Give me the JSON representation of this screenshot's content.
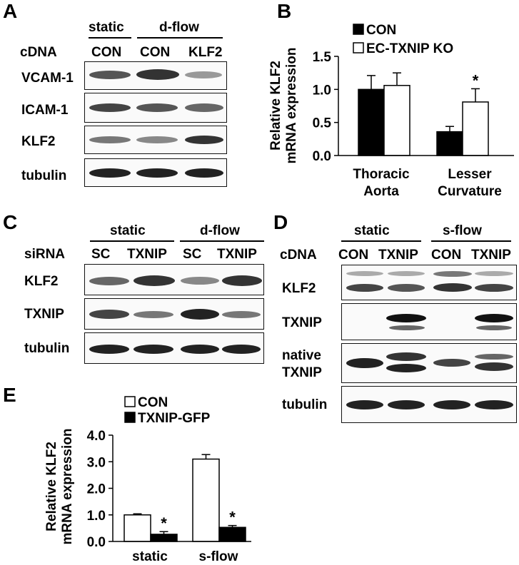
{
  "panelA": {
    "letter": "A",
    "groups": [
      "static",
      "d-flow"
    ],
    "row_header": "cDNA",
    "lanes": [
      "CON",
      "CON",
      "KLF2"
    ],
    "blots": [
      "VCAM-1",
      "ICAM-1",
      "KLF2",
      "tubulin"
    ]
  },
  "panelB": {
    "letter": "B",
    "legend": [
      "CON",
      "EC-TXNIP KO"
    ],
    "ylabel_line1": "Relative KLF2",
    "ylabel_line2": "mRNA expression",
    "star": "*",
    "ticks": [
      "0.0",
      "0.5",
      "1.0",
      "1.5"
    ],
    "cat1_line1": "Thoracic",
    "cat1_line2": "Aorta",
    "cat2_line1": "Lesser",
    "cat2_line2": "Curvature"
  },
  "panelC": {
    "letter": "C",
    "groups": [
      "static",
      "d-flow"
    ],
    "row_header": "siRNA",
    "lanes": [
      "SC",
      "TXNIP",
      "SC",
      "TXNIP"
    ],
    "blots": [
      "KLF2",
      "TXNIP",
      "tubulin"
    ]
  },
  "panelD": {
    "letter": "D",
    "groups": [
      "static",
      "s-flow"
    ],
    "row_header": "cDNA",
    "lanes": [
      "CON",
      "TXNIP",
      "CON",
      "TXNIP"
    ],
    "blots": [
      "KLF2",
      "TXNIP",
      "native",
      "TXNIP",
      "tubulin"
    ]
  },
  "panelE": {
    "letter": "E",
    "legend": [
      "CON",
      "TXNIP-GFP"
    ],
    "ylabel_line1": "Relative KLF2",
    "ylabel_line2": "mRNA expression",
    "star": "*",
    "ticks": [
      "0.0",
      "1.0",
      "2.0",
      "3.0",
      "4.0"
    ],
    "cat1": "static",
    "cat2": "s-flow"
  },
  "chart_data": [
    {
      "type": "bar",
      "panel": "B",
      "ylabel": "Relative KLF2 mRNA expression",
      "ylim": [
        0,
        1.5
      ],
      "categories": [
        "Thoracic Aorta",
        "Lesser Curvature"
      ],
      "series": [
        {
          "name": "CON",
          "color": "#000000",
          "values": [
            1.0,
            0.36
          ],
          "errors": [
            0.21,
            0.08
          ]
        },
        {
          "name": "EC-TXNIP KO",
          "color": "#ffffff",
          "values": [
            1.06,
            0.81
          ],
          "errors": [
            0.19,
            0.2
          ]
        }
      ],
      "significance": [
        {
          "category": "Lesser Curvature",
          "series": "EC-TXNIP KO",
          "mark": "*"
        }
      ]
    },
    {
      "type": "bar",
      "panel": "E",
      "ylabel": "Relative KLF2 mRNA expression",
      "ylim": [
        0,
        4.0
      ],
      "categories": [
        "static",
        "s-flow"
      ],
      "series": [
        {
          "name": "CON",
          "color": "#ffffff",
          "values": [
            1.0,
            3.1
          ],
          "errors": [
            0.04,
            0.17
          ]
        },
        {
          "name": "TXNIP-GFP",
          "color": "#000000",
          "values": [
            0.27,
            0.53
          ],
          "errors": [
            0.1,
            0.07
          ]
        }
      ],
      "significance": [
        {
          "category": "static",
          "series": "TXNIP-GFP",
          "mark": "*"
        },
        {
          "category": "s-flow",
          "series": "TXNIP-GFP",
          "mark": "*"
        }
      ]
    }
  ]
}
